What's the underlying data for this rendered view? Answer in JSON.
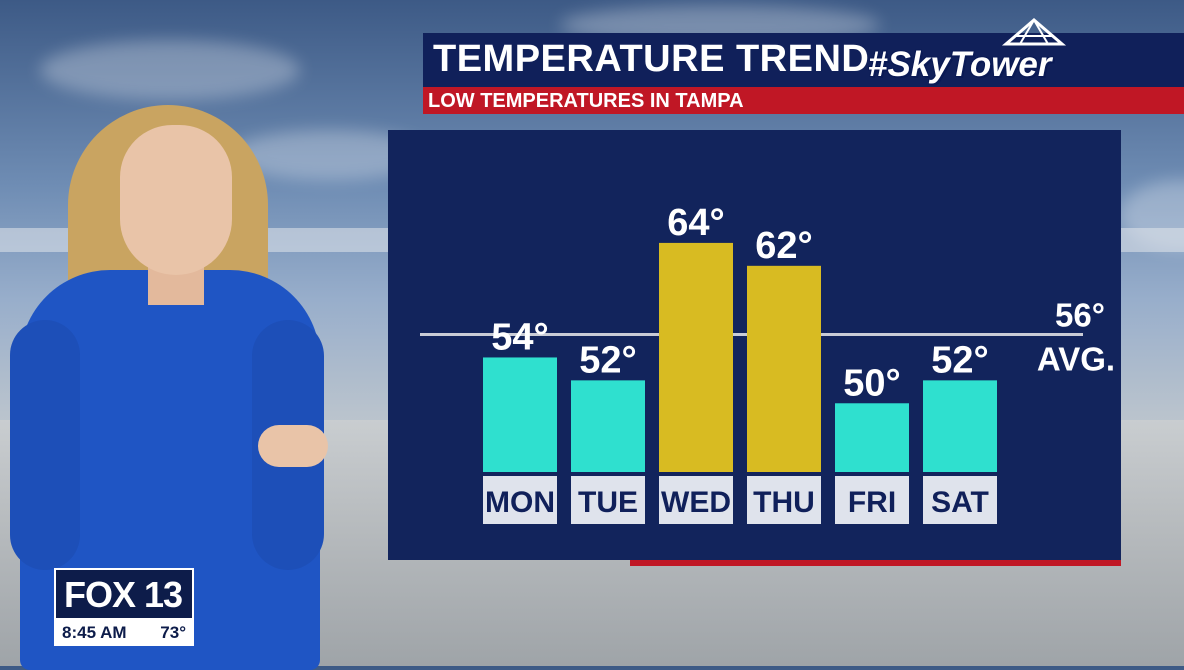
{
  "header": {
    "title": "TEMPERATURE TREND",
    "subtitle": "LOW TEMPERATURES IN TAMPA",
    "brand": "#SkyTower"
  },
  "bug": {
    "logo": "FOX 13",
    "time": "8:45 AM",
    "temp": "73°"
  },
  "colors": {
    "below_avg_bar": "#2fe0cf",
    "above_avg_bar": "#d8bb22",
    "panel": "#12245c",
    "accent_red": "#c01725"
  },
  "chart_data": {
    "type": "bar",
    "title": "TEMPERATURE TREND",
    "subtitle": "LOW TEMPERATURES IN TAMPA",
    "categories": [
      "MON",
      "TUE",
      "WED",
      "THU",
      "FRI",
      "SAT"
    ],
    "values": [
      54,
      52,
      64,
      62,
      50,
      52
    ],
    "value_labels": [
      "54°",
      "52°",
      "64°",
      "62°",
      "50°",
      "52°"
    ],
    "average": {
      "value": 56,
      "label": "56°",
      "sublabel": "AVG."
    },
    "ylim": [
      44,
      66
    ],
    "grid": false,
    "legend": "none"
  }
}
